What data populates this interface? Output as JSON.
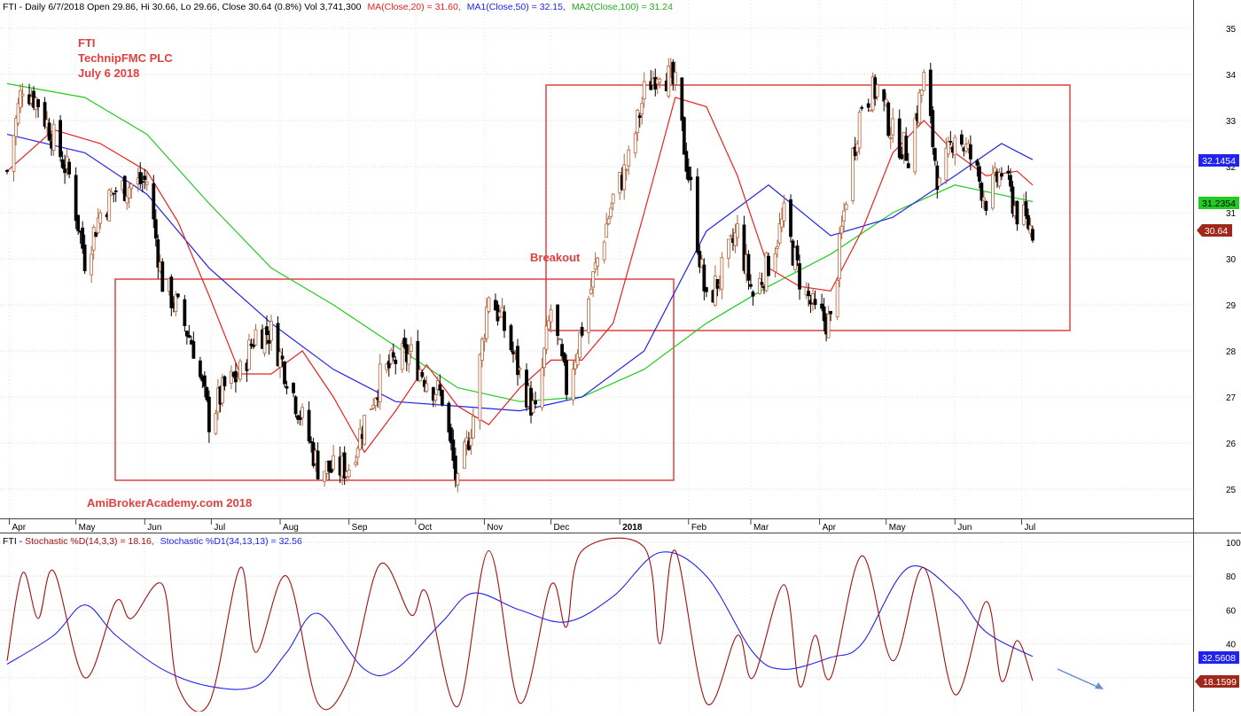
{
  "header": {
    "price_prefix": "FTI - Daily 6/7/2018 Open 29.86, Hi 30.66, Lo 29.66, Close 30.64 (0.8%) Vol 3,741,300",
    "ma20": "MA(Close,20) = 31.60,",
    "ma50": "MA1(Close,50) = 32.15,",
    "ma100": "MA2(Close,100) = 31.24"
  },
  "annotations": {
    "ticker": "FTI",
    "company": "TechnipFMC PLC",
    "date": "July 6 2018",
    "breakout": "Breakout",
    "watermark": "AmiBrokerAcademy.com  2018"
  },
  "indicator_header": {
    "prefix": "FTI - ",
    "stoch_fast": "Stochastic %D(14,3,3) = 18.16,",
    "stoch_slow": "Stochastic %D1(34,13,13) = 32.56"
  },
  "badges": {
    "ma50": "32.1454",
    "ma100": "31.2354",
    "close": "30.64",
    "stoch_slow": "32.5608",
    "stoch_fast": "18.1599"
  },
  "colors": {
    "ma20": "#e8231f",
    "ma50": "#2222ee",
    "ma100": "#22cc22",
    "stoch_fast": "#a01010",
    "stoch_slow": "#2222ee",
    "box": "#e04040",
    "text_red": "#e04040",
    "up": "#b5643c",
    "down": "#000000"
  },
  "chart_data": [
    {
      "type": "candlestick",
      "title": "FTI - Daily 6/7/2018",
      "ylim": [
        24.5,
        35.3
      ],
      "y_ticks": [
        25,
        26,
        27,
        28,
        29,
        30,
        31,
        32,
        33,
        34,
        35
      ],
      "x_ticks": [
        "Apr",
        "May",
        "Jun",
        "Jul",
        "Aug",
        "Sep",
        "Oct",
        "Nov",
        "Dec",
        "2018",
        "Feb",
        "Mar",
        "Apr",
        "May",
        "Jun",
        "Jul"
      ],
      "close_series": [
        {
          "d": "2017-03-31",
          "c": 31.9
        },
        {
          "d": "2017-04-07",
          "c": 33.8
        },
        {
          "d": "2017-04-14",
          "c": 33.4
        },
        {
          "d": "2017-04-21",
          "c": 32.6
        },
        {
          "d": "2017-04-28",
          "c": 31.8
        },
        {
          "d": "2017-05-05",
          "c": 30.0
        },
        {
          "d": "2017-05-12",
          "c": 31.0
        },
        {
          "d": "2017-05-19",
          "c": 31.5
        },
        {
          "d": "2017-05-26",
          "c": 31.6
        },
        {
          "d": "2017-06-02",
          "c": 31.7
        },
        {
          "d": "2017-06-09",
          "c": 29.5
        },
        {
          "d": "2017-06-16",
          "c": 28.9
        },
        {
          "d": "2017-06-23",
          "c": 28.1
        },
        {
          "d": "2017-06-30",
          "c": 26.5
        },
        {
          "d": "2017-07-07",
          "c": 27.2
        },
        {
          "d": "2017-07-14",
          "c": 27.5
        },
        {
          "d": "2017-07-21",
          "c": 28.4
        },
        {
          "d": "2017-07-28",
          "c": 28.4
        },
        {
          "d": "2017-08-04",
          "c": 27.5
        },
        {
          "d": "2017-08-11",
          "c": 26.5
        },
        {
          "d": "2017-08-18",
          "c": 25.5
        },
        {
          "d": "2017-08-25",
          "c": 25.4
        },
        {
          "d": "2017-09-01",
          "c": 25.5
        },
        {
          "d": "2017-09-08",
          "c": 26.5
        },
        {
          "d": "2017-09-15",
          "c": 27.4
        },
        {
          "d": "2017-09-22",
          "c": 27.8
        },
        {
          "d": "2017-09-29",
          "c": 27.9
        },
        {
          "d": "2017-10-06",
          "c": 27.4
        },
        {
          "d": "2017-10-13",
          "c": 27.0
        },
        {
          "d": "2017-10-20",
          "c": 25.0
        },
        {
          "d": "2017-10-27",
          "c": 26.6
        },
        {
          "d": "2017-11-03",
          "c": 29.3
        },
        {
          "d": "2017-11-10",
          "c": 28.5
        },
        {
          "d": "2017-11-17",
          "c": 27.5
        },
        {
          "d": "2017-11-24",
          "c": 26.6
        },
        {
          "d": "2017-12-01",
          "c": 28.9
        },
        {
          "d": "2017-12-08",
          "c": 27.2
        },
        {
          "d": "2017-12-15",
          "c": 28.5
        },
        {
          "d": "2017-12-22",
          "c": 30.0
        },
        {
          "d": "2017-12-29",
          "c": 31.3
        },
        {
          "d": "2018-01-05",
          "c": 32.1
        },
        {
          "d": "2018-01-12",
          "c": 33.6
        },
        {
          "d": "2018-01-19",
          "c": 34.2
        },
        {
          "d": "2018-01-26",
          "c": 33.7
        },
        {
          "d": "2018-02-02",
          "c": 31.5
        },
        {
          "d": "2018-02-09",
          "c": 29.0
        },
        {
          "d": "2018-02-16",
          "c": 29.7
        },
        {
          "d": "2018-02-23",
          "c": 30.6
        },
        {
          "d": "2018-03-02",
          "c": 29.2
        },
        {
          "d": "2018-03-09",
          "c": 29.9
        },
        {
          "d": "2018-03-16",
          "c": 30.9
        },
        {
          "d": "2018-03-23",
          "c": 29.6
        },
        {
          "d": "2018-03-30",
          "c": 28.8
        },
        {
          "d": "2018-04-06",
          "c": 28.6
        },
        {
          "d": "2018-04-13",
          "c": 31.4
        },
        {
          "d": "2018-04-20",
          "c": 33.4
        },
        {
          "d": "2018-04-27",
          "c": 33.7
        },
        {
          "d": "2018-05-04",
          "c": 32.7
        },
        {
          "d": "2018-05-11",
          "c": 32.3
        },
        {
          "d": "2018-05-18",
          "c": 33.9
        },
        {
          "d": "2018-05-25",
          "c": 31.5
        },
        {
          "d": "2018-06-01",
          "c": 32.8
        },
        {
          "d": "2018-06-08",
          "c": 32.2
        },
        {
          "d": "2018-06-15",
          "c": 31.3
        },
        {
          "d": "2018-06-22",
          "c": 31.9
        },
        {
          "d": "2018-06-29",
          "c": 31.0
        },
        {
          "d": "2018-07-06",
          "c": 30.64
        }
      ],
      "ma20": [
        {
          "d": "2017-03-31",
          "v": 31.9
        },
        {
          "d": "2017-04-21",
          "v": 32.8
        },
        {
          "d": "2017-05-12",
          "v": 32.5
        },
        {
          "d": "2017-06-02",
          "v": 31.9
        },
        {
          "d": "2017-06-16",
          "v": 30.8
        },
        {
          "d": "2017-06-30",
          "v": 29.2
        },
        {
          "d": "2017-07-14",
          "v": 27.5
        },
        {
          "d": "2017-07-28",
          "v": 27.5
        },
        {
          "d": "2017-08-11",
          "v": 28.0
        },
        {
          "d": "2017-08-25",
          "v": 27.0
        },
        {
          "d": "2017-09-08",
          "v": 25.8
        },
        {
          "d": "2017-09-22",
          "v": 26.7
        },
        {
          "d": "2017-10-06",
          "v": 27.7
        },
        {
          "d": "2017-10-20",
          "v": 26.8
        },
        {
          "d": "2017-11-03",
          "v": 26.4
        },
        {
          "d": "2017-11-17",
          "v": 27.2
        },
        {
          "d": "2017-12-01",
          "v": 27.8
        },
        {
          "d": "2017-12-15",
          "v": 27.8
        },
        {
          "d": "2017-12-29",
          "v": 28.6
        },
        {
          "d": "2018-01-12",
          "v": 31.0
        },
        {
          "d": "2018-01-26",
          "v": 33.5
        },
        {
          "d": "2018-02-09",
          "v": 33.3
        },
        {
          "d": "2018-02-23",
          "v": 31.8
        },
        {
          "d": "2018-03-09",
          "v": 29.8
        },
        {
          "d": "2018-03-23",
          "v": 29.4
        },
        {
          "d": "2018-04-06",
          "v": 29.3
        },
        {
          "d": "2018-04-20",
          "v": 30.6
        },
        {
          "d": "2018-05-04",
          "v": 32.3
        },
        {
          "d": "2018-05-18",
          "v": 33.0
        },
        {
          "d": "2018-06-01",
          "v": 32.3
        },
        {
          "d": "2018-06-15",
          "v": 31.8
        },
        {
          "d": "2018-06-29",
          "v": 31.9
        },
        {
          "d": "2018-07-06",
          "v": 31.6
        }
      ],
      "ma50": [
        {
          "d": "2017-03-31",
          "v": 32.7
        },
        {
          "d": "2017-05-05",
          "v": 32.3
        },
        {
          "d": "2017-06-02",
          "v": 31.4
        },
        {
          "d": "2017-06-30",
          "v": 29.8
        },
        {
          "d": "2017-07-28",
          "v": 28.6
        },
        {
          "d": "2017-08-25",
          "v": 27.6
        },
        {
          "d": "2017-09-22",
          "v": 26.9
        },
        {
          "d": "2017-10-20",
          "v": 26.8
        },
        {
          "d": "2017-11-17",
          "v": 26.7
        },
        {
          "d": "2017-12-15",
          "v": 27.0
        },
        {
          "d": "2018-01-12",
          "v": 28.0
        },
        {
          "d": "2018-02-09",
          "v": 30.6
        },
        {
          "d": "2018-03-09",
          "v": 31.6
        },
        {
          "d": "2018-04-06",
          "v": 30.5
        },
        {
          "d": "2018-05-04",
          "v": 30.9
        },
        {
          "d": "2018-06-01",
          "v": 31.8
        },
        {
          "d": "2018-06-22",
          "v": 32.5
        },
        {
          "d": "2018-07-06",
          "v": 32.15
        }
      ],
      "ma100": [
        {
          "d": "2017-03-31",
          "v": 33.8
        },
        {
          "d": "2017-05-05",
          "v": 33.5
        },
        {
          "d": "2017-06-02",
          "v": 32.7
        },
        {
          "d": "2017-06-30",
          "v": 31.2
        },
        {
          "d": "2017-07-28",
          "v": 29.8
        },
        {
          "d": "2017-08-25",
          "v": 29.0
        },
        {
          "d": "2017-09-22",
          "v": 28.1
        },
        {
          "d": "2017-10-20",
          "v": 27.2
        },
        {
          "d": "2017-11-17",
          "v": 26.9
        },
        {
          "d": "2017-12-15",
          "v": 27.0
        },
        {
          "d": "2018-01-12",
          "v": 27.6
        },
        {
          "d": "2018-02-09",
          "v": 28.6
        },
        {
          "d": "2018-03-09",
          "v": 29.4
        },
        {
          "d": "2018-04-06",
          "v": 30.1
        },
        {
          "d": "2018-05-04",
          "v": 31.0
        },
        {
          "d": "2018-06-01",
          "v": 31.6
        },
        {
          "d": "2018-07-06",
          "v": 31.24
        }
      ]
    },
    {
      "type": "line",
      "title": "Stochastic",
      "ylim": [
        0,
        100
      ],
      "y_ticks": [
        20,
        40,
        60,
        80,
        100
      ],
      "series": [
        {
          "name": "Stochastic %D(14,3,3)",
          "values": [
            {
              "d": "2017-03-31",
              "v": 30
            },
            {
              "d": "2017-04-07",
              "v": 82
            },
            {
              "d": "2017-04-14",
              "v": 55
            },
            {
              "d": "2017-04-21",
              "v": 83
            },
            {
              "d": "2017-05-05",
              "v": 20
            },
            {
              "d": "2017-05-19",
              "v": 65
            },
            {
              "d": "2017-05-26",
              "v": 55
            },
            {
              "d": "2017-06-09",
              "v": 75
            },
            {
              "d": "2017-06-16",
              "v": 15
            },
            {
              "d": "2017-06-30",
              "v": 5
            },
            {
              "d": "2017-07-14",
              "v": 85
            },
            {
              "d": "2017-07-21",
              "v": 35
            },
            {
              "d": "2017-08-04",
              "v": 80
            },
            {
              "d": "2017-08-18",
              "v": 5
            },
            {
              "d": "2017-09-01",
              "v": 20
            },
            {
              "d": "2017-09-15",
              "v": 87
            },
            {
              "d": "2017-09-29",
              "v": 57
            },
            {
              "d": "2017-10-06",
              "v": 70
            },
            {
              "d": "2017-10-20",
              "v": 3
            },
            {
              "d": "2017-11-03",
              "v": 95
            },
            {
              "d": "2017-11-17",
              "v": 5
            },
            {
              "d": "2017-12-01",
              "v": 75
            },
            {
              "d": "2017-12-08",
              "v": 50
            },
            {
              "d": "2017-12-15",
              "v": 95
            },
            {
              "d": "2018-01-12",
              "v": 97
            },
            {
              "d": "2018-01-19",
              "v": 40
            },
            {
              "d": "2018-01-26",
              "v": 95
            },
            {
              "d": "2018-02-09",
              "v": 5
            },
            {
              "d": "2018-02-23",
              "v": 45
            },
            {
              "d": "2018-03-02",
              "v": 20
            },
            {
              "d": "2018-03-16",
              "v": 75
            },
            {
              "d": "2018-03-23",
              "v": 15
            },
            {
              "d": "2018-03-30",
              "v": 45
            },
            {
              "d": "2018-04-06",
              "v": 20
            },
            {
              "d": "2018-04-20",
              "v": 92
            },
            {
              "d": "2018-05-04",
              "v": 30
            },
            {
              "d": "2018-05-18",
              "v": 85
            },
            {
              "d": "2018-06-01",
              "v": 10
            },
            {
              "d": "2018-06-15",
              "v": 65
            },
            {
              "d": "2018-06-22",
              "v": 18
            },
            {
              "d": "2018-06-29",
              "v": 42
            },
            {
              "d": "2018-07-06",
              "v": 18.16
            }
          ]
        },
        {
          "name": "Stochastic %D1(34,13,13)",
          "values": [
            {
              "d": "2017-03-31",
              "v": 28
            },
            {
              "d": "2017-04-21",
              "v": 45
            },
            {
              "d": "2017-05-05",
              "v": 63
            },
            {
              "d": "2017-05-19",
              "v": 45
            },
            {
              "d": "2017-06-09",
              "v": 25
            },
            {
              "d": "2017-06-30",
              "v": 15
            },
            {
              "d": "2017-07-21",
              "v": 15
            },
            {
              "d": "2017-08-04",
              "v": 35
            },
            {
              "d": "2017-08-18",
              "v": 58
            },
            {
              "d": "2017-09-08",
              "v": 25
            },
            {
              "d": "2017-09-22",
              "v": 25
            },
            {
              "d": "2017-10-13",
              "v": 53
            },
            {
              "d": "2017-10-27",
              "v": 70
            },
            {
              "d": "2017-11-17",
              "v": 60
            },
            {
              "d": "2017-12-08",
              "v": 53
            },
            {
              "d": "2017-12-29",
              "v": 68
            },
            {
              "d": "2018-01-19",
              "v": 94
            },
            {
              "d": "2018-02-09",
              "v": 80
            },
            {
              "d": "2018-03-02",
              "v": 35
            },
            {
              "d": "2018-03-16",
              "v": 25
            },
            {
              "d": "2018-04-06",
              "v": 32
            },
            {
              "d": "2018-04-20",
              "v": 40
            },
            {
              "d": "2018-05-11",
              "v": 85
            },
            {
              "d": "2018-06-01",
              "v": 70
            },
            {
              "d": "2018-06-15",
              "v": 47
            },
            {
              "d": "2018-07-06",
              "v": 32.56
            }
          ]
        }
      ]
    }
  ]
}
